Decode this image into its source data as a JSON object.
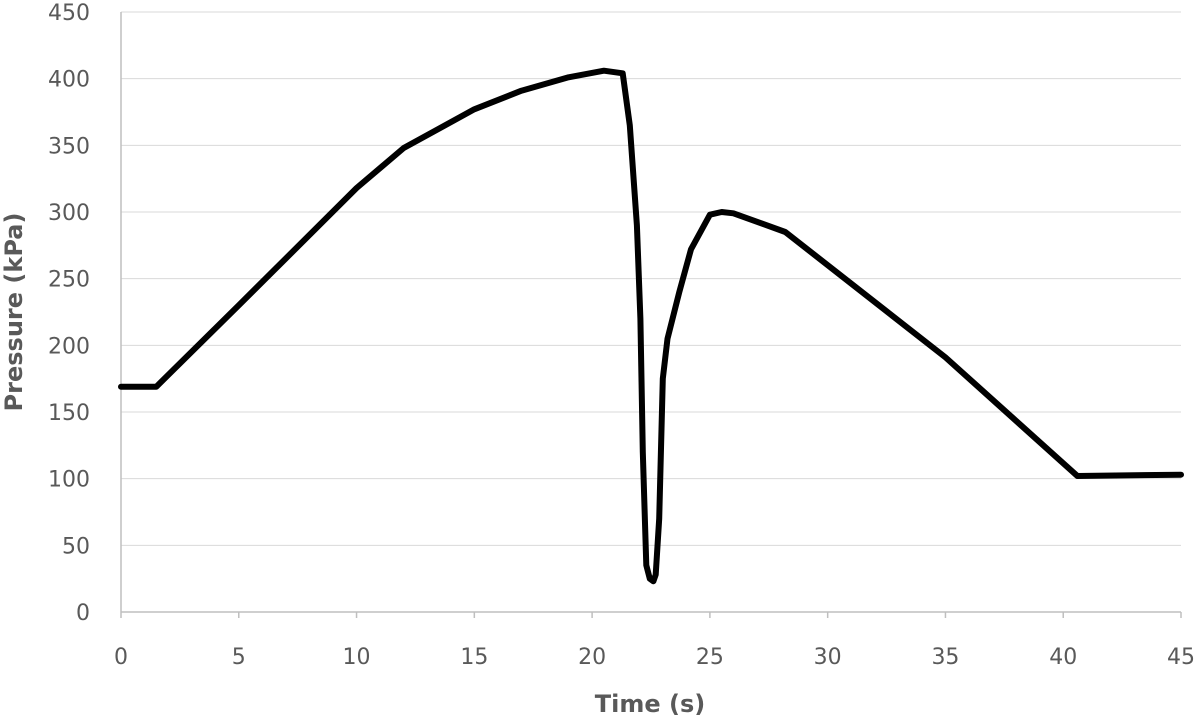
{
  "chart_data": {
    "type": "line",
    "title": "",
    "xlabel": "Time (s)",
    "ylabel": "Pressure (kPa)",
    "xlim": [
      0,
      45
    ],
    "ylim": [
      0,
      450
    ],
    "xticks": [
      0,
      5,
      10,
      15,
      20,
      25,
      30,
      35,
      40,
      45
    ],
    "yticks": [
      0,
      50,
      100,
      150,
      200,
      250,
      300,
      350,
      400,
      450
    ],
    "grid": "horizontal",
    "legend": "none",
    "colors": {
      "line": "#000000",
      "grid": "#d9d9d9",
      "axis": "#bfbfbf",
      "text": "#595959"
    },
    "series": [
      {
        "name": "Pressure",
        "x": [
          0,
          1.5,
          5,
          10,
          12,
          15,
          17,
          19,
          20.5,
          21.3,
          21.6,
          21.9,
          22.05,
          22.15,
          22.3,
          22.45,
          22.6,
          22.7,
          22.85,
          23.0,
          23.2,
          23.7,
          24.2,
          25.0,
          25.5,
          26.0,
          28.2,
          35,
          40.6,
          45
        ],
        "y": [
          169,
          169,
          230,
          318,
          348,
          377,
          391,
          401,
          406,
          404,
          365,
          290,
          220,
          120,
          35,
          25,
          23,
          28,
          70,
          175,
          205,
          240,
          272,
          298,
          300,
          299,
          285,
          191,
          102,
          103
        ]
      }
    ]
  }
}
